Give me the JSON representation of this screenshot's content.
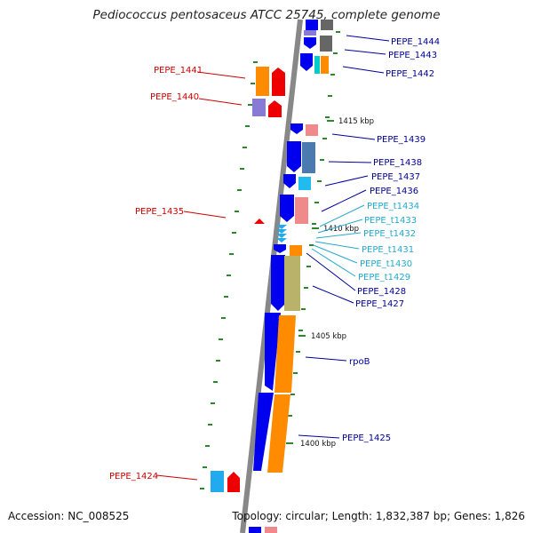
{
  "title": "Pediococcus pentosaceus ATCC 25745, complete genome",
  "footer": {
    "accession": "Accession: NC_008525",
    "summary": "Topology: circular; Length: 1,832,387 bp; Genes: 1,826"
  },
  "colors": {
    "backbone": "#888888",
    "forward_cds": "#0000ee",
    "reverse_cds": "#ee0000",
    "trna": "#22aaee",
    "orange_feature": "#ff8c00",
    "tick": "#2a8a2a",
    "label_forward": "#000099",
    "label_trna": "#22aacc",
    "label_reverse": "#cc0000"
  },
  "scale_labels": [
    {
      "id": "kbp-1415",
      "text": "1415 kbp"
    },
    {
      "id": "kbp-1410",
      "text": "1410 kbp"
    },
    {
      "id": "kbp-1405",
      "text": "1405 kbp"
    },
    {
      "id": "kbp-1400",
      "text": "1400 kbp"
    }
  ],
  "gene_labels": [
    {
      "id": "pepe-1444",
      "text": "PEPE_1444",
      "kind": "forward"
    },
    {
      "id": "pepe-1443",
      "text": "PEPE_1443",
      "kind": "forward"
    },
    {
      "id": "pepe-1442",
      "text": "PEPE_1442",
      "kind": "forward"
    },
    {
      "id": "pepe-1441",
      "text": "PEPE_1441",
      "kind": "reverse"
    },
    {
      "id": "pepe-1440",
      "text": "PEPE_1440",
      "kind": "reverse"
    },
    {
      "id": "pepe-1439",
      "text": "PEPE_1439",
      "kind": "forward"
    },
    {
      "id": "pepe-1438",
      "text": "PEPE_1438",
      "kind": "forward"
    },
    {
      "id": "pepe-1437",
      "text": "PEPE_1437",
      "kind": "forward"
    },
    {
      "id": "pepe-1436",
      "text": "PEPE_1436",
      "kind": "forward"
    },
    {
      "id": "pepe-1435",
      "text": "PEPE_1435",
      "kind": "reverse"
    },
    {
      "id": "pepe-t1434",
      "text": "PEPE_t1434",
      "kind": "trna"
    },
    {
      "id": "pepe-t1433",
      "text": "PEPE_t1433",
      "kind": "trna"
    },
    {
      "id": "pepe-t1432",
      "text": "PEPE_t1432",
      "kind": "trna"
    },
    {
      "id": "pepe-t1431",
      "text": "PEPE_t1431",
      "kind": "trna"
    },
    {
      "id": "pepe-t1430",
      "text": "PEPE_t1430",
      "kind": "trna"
    },
    {
      "id": "pepe-t1429",
      "text": "PEPE_t1429",
      "kind": "trna"
    },
    {
      "id": "pepe-1428",
      "text": "PEPE_1428",
      "kind": "forward"
    },
    {
      "id": "pepe-1427",
      "text": "PEPE_1427",
      "kind": "forward"
    },
    {
      "id": "rpob",
      "text": "rpoB",
      "kind": "forward"
    },
    {
      "id": "pepe-1425",
      "text": "PEPE_1425",
      "kind": "forward"
    },
    {
      "id": "pepe-1424",
      "text": "PEPE_1424",
      "kind": "reverse"
    }
  ]
}
